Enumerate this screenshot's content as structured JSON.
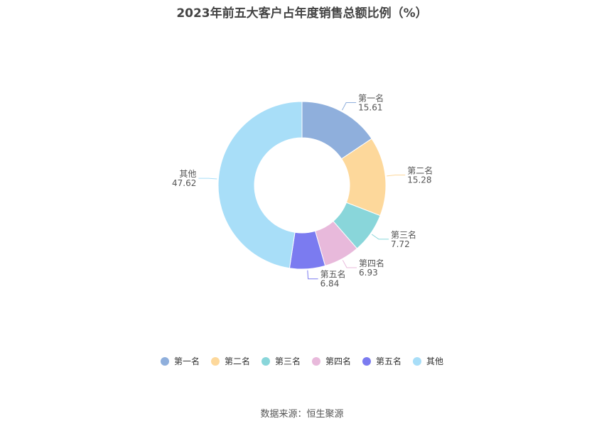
{
  "title": "2023年前五大客户占年度销售总额比例（%）",
  "source": "数据来源：恒生聚源",
  "chart_data": {
    "type": "pie",
    "variant": "donut",
    "categories": [
      "第一名",
      "第二名",
      "第三名",
      "第四名",
      "第五名",
      "其他"
    ],
    "values": [
      15.61,
      15.28,
      7.72,
      6.93,
      6.84,
      47.62
    ],
    "value_labels": [
      "15.61",
      "15.28",
      "7.72",
      "6.93",
      "6.84",
      "47.62"
    ],
    "colors": [
      "#8fafdc",
      "#fdd89b",
      "#89d6da",
      "#e8b9db",
      "#7b7bf0",
      "#a8def8"
    ],
    "legend_position": "bottom",
    "start_direction": "top, clockwise"
  }
}
